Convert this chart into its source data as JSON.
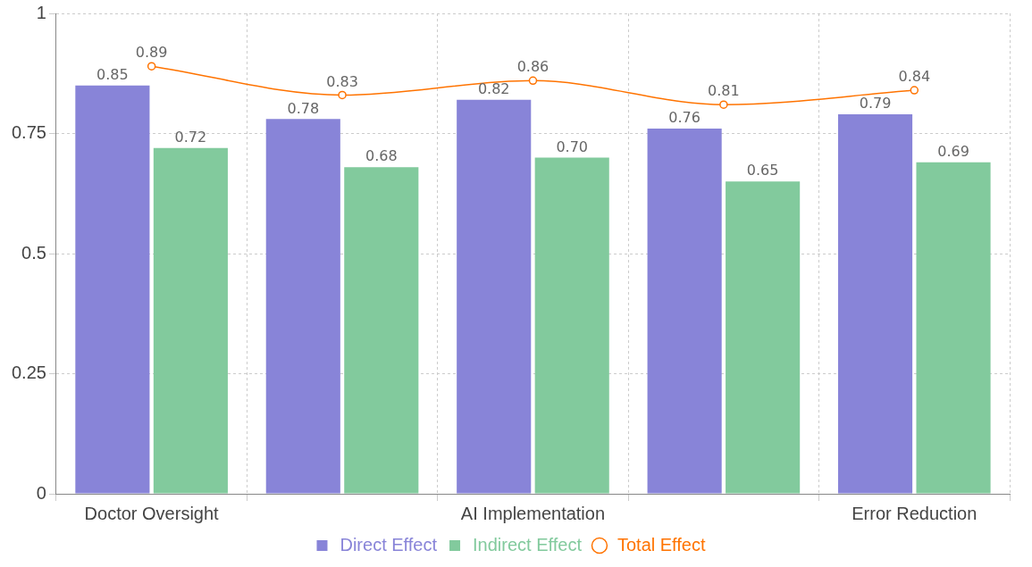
{
  "chart_data": {
    "type": "bar",
    "categories": [
      "Doctor Oversight",
      null,
      "AI Implementation",
      null,
      "Error Reduction"
    ],
    "series": [
      {
        "name": "Direct Effect",
        "color": "#8884d8",
        "values": [
          0.85,
          0.78,
          0.82,
          0.76,
          0.79
        ],
        "value_labels": [
          "0.85",
          "0.78",
          "0.82",
          "0.76",
          "0.79"
        ]
      },
      {
        "name": "Indirect Effect",
        "color": "#82ca9d",
        "values": [
          0.72,
          0.68,
          0.7,
          0.65,
          0.69
        ],
        "value_labels": [
          "0.72",
          "0.68",
          "0.70",
          "0.65",
          "0.69"
        ]
      },
      {
        "name": "Total Effect",
        "type": "line",
        "color": "#ff7300",
        "marker": "circle",
        "values": [
          0.89,
          0.83,
          0.86,
          0.81,
          0.84
        ],
        "value_labels": [
          "0.89",
          "0.83",
          "0.86",
          "0.81",
          "0.84"
        ]
      }
    ],
    "ylim": [
      0,
      1
    ],
    "yticks": [
      0,
      0.25,
      0.5,
      0.75,
      1
    ],
    "grid": true,
    "legend": "bottom"
  }
}
